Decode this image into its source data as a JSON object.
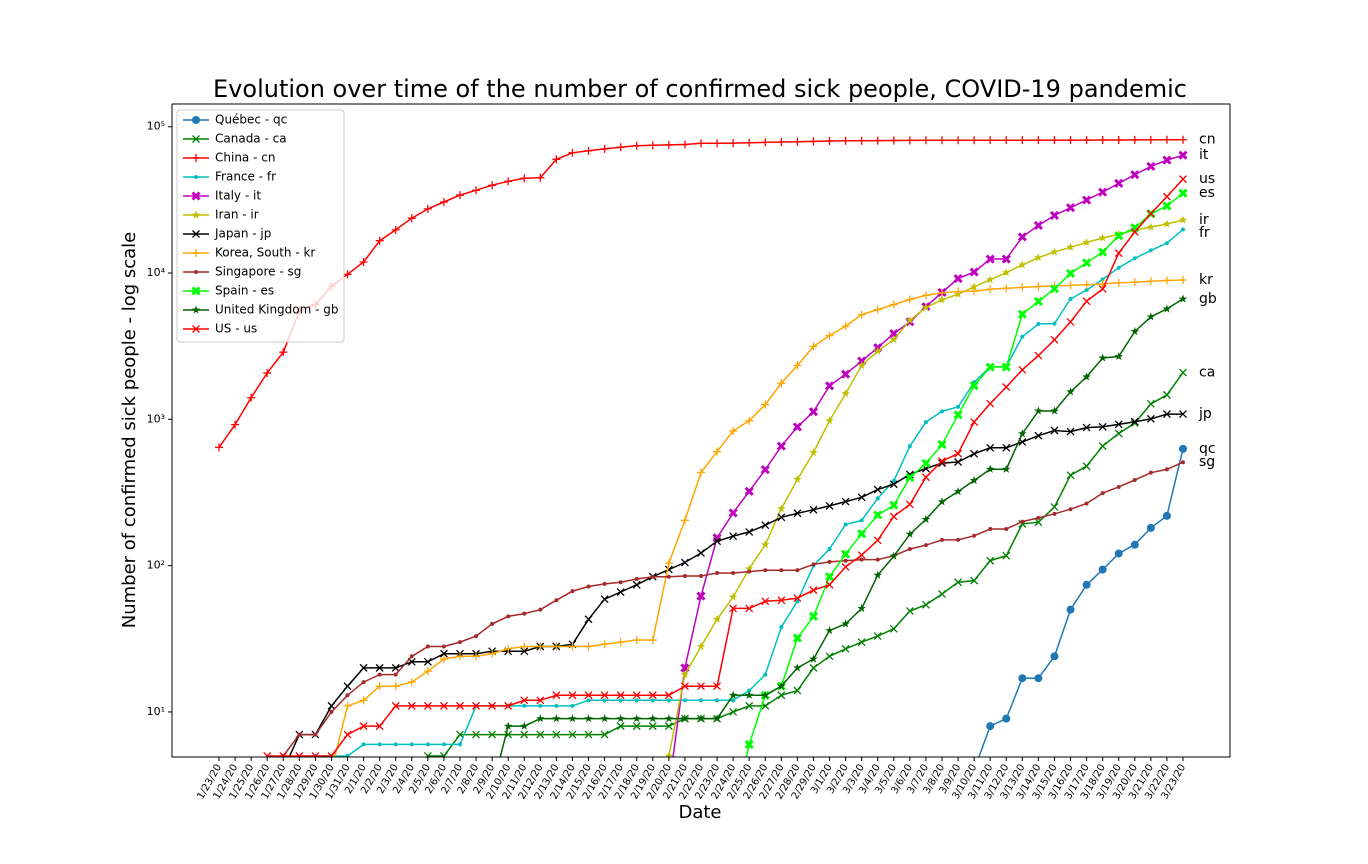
{
  "chart_data": {
    "type": "line",
    "title": "Evolution over time of the number of confirmed sick people, COVID-19 pandemic",
    "x_label": "Date",
    "y_label": "Number of confirmed sick people - log scale",
    "log_scale": true,
    "legend": "upper left",
    "ylim": [
      4.92,
      143000
    ],
    "yticks": [
      {
        "value": 10,
        "label": "10¹"
      },
      {
        "value": 100,
        "label": "10²"
      },
      {
        "value": 1000,
        "label": "10³"
      },
      {
        "value": 10000,
        "label": "10⁴"
      },
      {
        "value": 100000,
        "label": "10⁵"
      }
    ],
    "categories": [
      "1/23/20",
      "1/24/20",
      "1/25/20",
      "1/26/20",
      "1/27/20",
      "1/28/20",
      "1/29/20",
      "1/30/20",
      "1/31/20",
      "2/1/20",
      "2/2/20",
      "2/3/20",
      "2/4/20",
      "2/5/20",
      "2/6/20",
      "2/7/20",
      "2/8/20",
      "2/9/20",
      "2/10/20",
      "2/11/20",
      "2/12/20",
      "2/13/20",
      "2/14/20",
      "2/15/20",
      "2/16/20",
      "2/17/20",
      "2/18/20",
      "2/19/20",
      "2/20/20",
      "2/21/20",
      "2/22/20",
      "2/23/20",
      "2/24/20",
      "2/25/20",
      "2/26/20",
      "2/27/20",
      "2/28/20",
      "2/29/20",
      "3/1/20",
      "3/2/20",
      "3/3/20",
      "3/4/20",
      "3/5/20",
      "3/6/20",
      "3/7/20",
      "3/8/20",
      "3/9/20",
      "3/10/20",
      "3/11/20",
      "3/12/20",
      "3/13/20",
      "3/14/20",
      "3/15/20",
      "3/16/20",
      "3/17/20",
      "3/18/20",
      "3/19/20",
      "3/20/20",
      "3/21/20",
      "3/22/20",
      "3/23/20"
    ],
    "series": [
      {
        "name": "Québec - qc",
        "end_label": "qc",
        "color": "#1f77b4",
        "marker": "o",
        "values": [
          null,
          null,
          null,
          null,
          null,
          null,
          null,
          null,
          null,
          null,
          null,
          null,
          null,
          null,
          null,
          null,
          null,
          null,
          null,
          null,
          null,
          null,
          null,
          null,
          null,
          null,
          null,
          null,
          null,
          null,
          null,
          null,
          null,
          null,
          null,
          null,
          null,
          null,
          null,
          null,
          null,
          null,
          null,
          null,
          null,
          null,
          null,
          4,
          8,
          9,
          17,
          17,
          24,
          50,
          74,
          94,
          121,
          139,
          181,
          219,
          628
        ]
      },
      {
        "name": "Canada - ca",
        "end_label": "ca",
        "color": "#008000",
        "marker": "x",
        "values": [
          null,
          null,
          null,
          1,
          1,
          2,
          2,
          2,
          4,
          4,
          4,
          4,
          4,
          5,
          5,
          7,
          7,
          7,
          7,
          7,
          7,
          7,
          7,
          7,
          7,
          8,
          8,
          8,
          8,
          9,
          9,
          9,
          10,
          11,
          11,
          13,
          14,
          20,
          24,
          27,
          30,
          33,
          37,
          49,
          54,
          64,
          77,
          79,
          108,
          117,
          193,
          198,
          252,
          415,
          478,
          657,
          800,
          943,
          1277,
          1469,
          2088
        ]
      },
      {
        "name": "China - cn",
        "end_label": "cn",
        "color": "#ff0000",
        "marker": "+",
        "values": [
          643,
          920,
          1406,
          2075,
          2877,
          5509,
          6087,
          8141,
          9802,
          11891,
          16630,
          19716,
          23707,
          27440,
          30587,
          34110,
          36814,
          39829,
          42354,
          44386,
          44759,
          59895,
          66358,
          68413,
          70513,
          72434,
          74211,
          74619,
          75077,
          75550,
          77001,
          77022,
          77241,
          77754,
          78166,
          78600,
          78928,
          79356,
          79932,
          80136,
          80261,
          80386,
          80537,
          80690,
          80770,
          80823,
          80860,
          80887,
          80921,
          80932,
          80945,
          80977,
          81003,
          81033,
          81058,
          81102,
          81156,
          81250,
          81305,
          81435,
          81498
        ]
      },
      {
        "name": "France - fr",
        "end_label": "fr",
        "color": "#00bfbf",
        "marker": ".",
        "values": [
          null,
          2,
          3,
          3,
          3,
          4,
          5,
          5,
          5,
          6,
          6,
          6,
          6,
          6,
          6,
          6,
          11,
          11,
          11,
          11,
          11,
          11,
          11,
          12,
          12,
          12,
          12,
          12,
          12,
          12,
          12,
          12,
          12,
          14,
          18,
          38,
          57,
          100,
          130,
          191,
          204,
          288,
          380,
          656,
          957,
          1134,
          1217,
          1792,
          2289,
          2289,
          3672,
          4480,
          4513,
          6650,
          7652,
          9043,
          10871,
          12612,
          14282,
          16018,
          19856
        ]
      },
      {
        "name": "Italy - it",
        "end_label": "it",
        "color": "#bf00bf",
        "marker": "X",
        "values": [
          null,
          null,
          null,
          null,
          null,
          null,
          null,
          null,
          2,
          2,
          2,
          2,
          2,
          2,
          3,
          3,
          3,
          3,
          3,
          3,
          3,
          3,
          3,
          3,
          3,
          3,
          3,
          3,
          3,
          20,
          62,
          155,
          229,
          322,
          453,
          655,
          888,
          1128,
          1694,
          2036,
          2502,
          3089,
          3858,
          4636,
          5883,
          7375,
          9172,
          10149,
          12462,
          12462,
          17660,
          21157,
          24747,
          27980,
          31506,
          35713,
          41035,
          47021,
          53578,
          59138,
          63927
        ]
      },
      {
        "name": "Iran - ir",
        "end_label": "ir",
        "color": "#bfbf00",
        "marker": "*",
        "values": [
          null,
          null,
          null,
          null,
          null,
          null,
          null,
          null,
          null,
          null,
          null,
          null,
          null,
          null,
          null,
          null,
          null,
          null,
          null,
          null,
          null,
          null,
          null,
          null,
          null,
          null,
          null,
          2,
          5,
          18,
          28,
          43,
          61,
          95,
          139,
          245,
          388,
          593,
          978,
          1501,
          2336,
          2922,
          3513,
          4747,
          5823,
          6566,
          7161,
          8042,
          9000,
          10075,
          11364,
          12729,
          13938,
          14991,
          16169,
          17361,
          18407,
          19644,
          20610,
          21638,
          23049
        ]
      },
      {
        "name": "Japan - jp",
        "end_label": "jp",
        "color": "#000000",
        "marker": "x",
        "values": [
          1,
          2,
          2,
          4,
          4,
          7,
          7,
          11,
          15,
          20,
          20,
          20,
          22,
          22,
          25,
          25,
          25,
          26,
          26,
          26,
          28,
          28,
          29,
          43,
          59,
          66,
          74,
          84,
          94,
          105,
          122,
          147,
          159,
          170,
          189,
          214,
          228,
          241,
          256,
          274,
          293,
          331,
          360,
          420,
          461,
          502,
          511,
          581,
          639,
          639,
          701,
          773,
          839,
          825,
          878,
          889,
          924,
          963,
          1007,
          1086,
          1086
        ]
      },
      {
        "name": "Korea, South - kr",
        "end_label": "kr",
        "color": "#ffa500",
        "marker": "+",
        "values": [
          1,
          2,
          2,
          3,
          4,
          4,
          4,
          4,
          11,
          12,
          15,
          15,
          16,
          19,
          23,
          24,
          24,
          25,
          27,
          28,
          28,
          28,
          28,
          28,
          29,
          30,
          31,
          31,
          104,
          204,
          433,
          602,
          833,
          977,
          1261,
          1766,
          2337,
          3150,
          3736,
          4335,
          5186,
          5621,
          6088,
          6593,
          7041,
          7314,
          7478,
          7513,
          7755,
          7869,
          7979,
          8086,
          8162,
          8236,
          8320,
          8413,
          8565,
          8652,
          8799,
          8897,
          8961
        ]
      },
      {
        "name": "Singapore - sg",
        "end_label": "sg",
        "color": "#a52a2a",
        "marker": ".",
        "values": [
          1,
          3,
          3,
          4,
          5,
          7,
          7,
          10,
          13,
          16,
          18,
          18,
          24,
          28,
          28,
          30,
          33,
          40,
          45,
          47,
          50,
          58,
          67,
          72,
          75,
          77,
          81,
          84,
          84,
          85,
          85,
          89,
          89,
          91,
          93,
          93,
          93,
          102,
          106,
          108,
          110,
          110,
          117,
          130,
          138,
          150,
          150,
          160,
          178,
          178,
          200,
          212,
          226,
          243,
          266,
          313,
          345,
          385,
          432,
          455,
          509
        ]
      },
      {
        "name": "Spain - es",
        "end_label": "es",
        "color": "#00ff00",
        "marker": "X",
        "values": [
          null,
          null,
          null,
          null,
          null,
          null,
          null,
          null,
          null,
          1,
          1,
          1,
          1,
          1,
          1,
          1,
          1,
          2,
          2,
          2,
          2,
          2,
          2,
          2,
          2,
          2,
          2,
          2,
          2,
          2,
          2,
          2,
          2,
          6,
          13,
          15,
          32,
          45,
          84,
          120,
          165,
          222,
          259,
          400,
          500,
          673,
          1073,
          1695,
          2277,
          2277,
          5232,
          6391,
          7798,
          9942,
          11748,
          13910,
          17963,
          20410,
          25374,
          28768,
          35136
        ]
      },
      {
        "name": "United Kingdom - gb",
        "end_label": "gb",
        "color": "#006400",
        "marker": "*",
        "values": [
          null,
          null,
          null,
          null,
          null,
          null,
          null,
          null,
          2,
          2,
          2,
          2,
          2,
          2,
          2,
          3,
          3,
          3,
          8,
          8,
          9,
          9,
          9,
          9,
          9,
          9,
          9,
          9,
          9,
          9,
          9,
          9,
          13,
          13,
          13,
          15,
          20,
          23,
          36,
          40,
          51,
          86,
          116,
          164,
          207,
          273,
          321,
          382,
          456,
          456,
          798,
          1140,
          1140,
          1543,
          1950,
          2626,
          2689,
          3983,
          5018,
          5683,
          6650
        ]
      },
      {
        "name": "US - us",
        "end_label": "us",
        "color": "#ff0000",
        "marker": "x",
        "values": [
          1,
          2,
          2,
          5,
          5,
          5,
          5,
          5,
          7,
          8,
          8,
          11,
          11,
          11,
          11,
          11,
          11,
          11,
          11,
          12,
          12,
          13,
          13,
          13,
          13,
          13,
          13,
          13,
          13,
          15,
          15,
          15,
          51,
          51,
          57,
          58,
          60,
          68,
          74,
          98,
          118,
          149,
          217,
          262,
          402,
          518,
          583,
          959,
          1281,
          1663,
          2179,
          2727,
          3499,
          4632,
          6421,
          7783,
          13677,
          19100,
          25489,
          33276,
          43847
        ]
      }
    ]
  }
}
